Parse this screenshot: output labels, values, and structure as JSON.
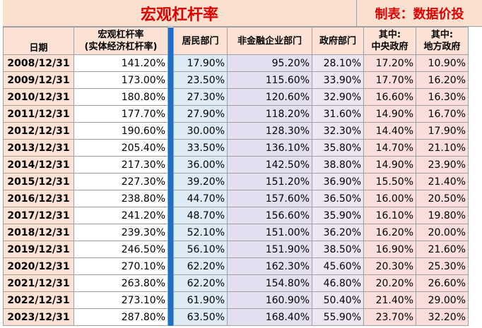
{
  "title": "宏观杠杆率",
  "maker": "制表：数据价投",
  "headers": {
    "date": "日期",
    "macro_line1": "宏观杠杆率",
    "macro_line2": "(实体经济杠杆率)",
    "household": "居民部门",
    "nonfinancial": "非金融企业部门",
    "government": "政府部门",
    "central_line1": "其中:",
    "central_line2": "中央政府",
    "local_line1": "其中:",
    "local_line2": "地方政府"
  },
  "colors": {
    "title_text": "#e00000",
    "separator": "#1f6fc6",
    "household_bg": "#ddebf7",
    "nonfinancial_bg": "#e4dff0",
    "government_bg": "#ede6f2",
    "subgov_bg": "#f9dedb",
    "date_bg": "#fbe2d5"
  },
  "rows": [
    {
      "date": "2008/12/31",
      "macro": "141.20%",
      "household": "17.90%",
      "nonfinancial": "95.20%",
      "government": "28.10%",
      "central": "17.20%",
      "local": "10.90%"
    },
    {
      "date": "2009/12/31",
      "macro": "173.00%",
      "household": "23.50%",
      "nonfinancial": "115.60%",
      "government": "33.90%",
      "central": "17.70%",
      "local": "16.20%"
    },
    {
      "date": "2010/12/31",
      "macro": "180.80%",
      "household": "27.30%",
      "nonfinancial": "120.60%",
      "government": "32.90%",
      "central": "16.60%",
      "local": "16.30%"
    },
    {
      "date": "2011/12/31",
      "macro": "177.70%",
      "household": "27.90%",
      "nonfinancial": "118.20%",
      "government": "31.60%",
      "central": "14.90%",
      "local": "16.70%"
    },
    {
      "date": "2012/12/31",
      "macro": "190.60%",
      "household": "30.00%",
      "nonfinancial": "128.30%",
      "government": "32.30%",
      "central": "14.40%",
      "local": "17.90%"
    },
    {
      "date": "2013/12/31",
      "macro": "205.40%",
      "household": "33.50%",
      "nonfinancial": "136.10%",
      "government": "35.80%",
      "central": "14.70%",
      "local": "21.10%"
    },
    {
      "date": "2014/12/31",
      "macro": "217.30%",
      "household": "36.00%",
      "nonfinancial": "142.50%",
      "government": "38.80%",
      "central": "14.90%",
      "local": "23.90%"
    },
    {
      "date": "2015/12/31",
      "macro": "227.30%",
      "household": "39.20%",
      "nonfinancial": "151.20%",
      "government": "36.90%",
      "central": "15.50%",
      "local": "21.40%"
    },
    {
      "date": "2016/12/31",
      "macro": "238.80%",
      "household": "44.70%",
      "nonfinancial": "157.60%",
      "government": "36.50%",
      "central": "16.00%",
      "local": "20.50%"
    },
    {
      "date": "2017/12/31",
      "macro": "241.20%",
      "household": "48.70%",
      "nonfinancial": "156.60%",
      "government": "35.90%",
      "central": "16.10%",
      "local": "19.80%"
    },
    {
      "date": "2018/12/31",
      "macro": "239.30%",
      "household": "52.10%",
      "nonfinancial": "151.00%",
      "government": "36.20%",
      "central": "16.20%",
      "local": "20.00%"
    },
    {
      "date": "2019/12/31",
      "macro": "246.50%",
      "household": "56.10%",
      "nonfinancial": "151.90%",
      "government": "38.50%",
      "central": "16.90%",
      "local": "21.60%"
    },
    {
      "date": "2020/12/31",
      "macro": "270.10%",
      "household": "62.20%",
      "nonfinancial": "162.30%",
      "government": "45.60%",
      "central": "20.30%",
      "local": "25.30%"
    },
    {
      "date": "2021/12/31",
      "macro": "263.80%",
      "household": "62.20%",
      "nonfinancial": "154.80%",
      "government": "46.80%",
      "central": "20.20%",
      "local": "26.60%"
    },
    {
      "date": "2022/12/31",
      "macro": "273.10%",
      "household": "61.90%",
      "nonfinancial": "160.90%",
      "government": "50.40%",
      "central": "21.40%",
      "local": "29.00%"
    },
    {
      "date": "2023/12/31",
      "macro": "287.80%",
      "household": "63.50%",
      "nonfinancial": "168.40%",
      "government": "55.90%",
      "central": "23.70%",
      "local": "32.20%"
    }
  ]
}
